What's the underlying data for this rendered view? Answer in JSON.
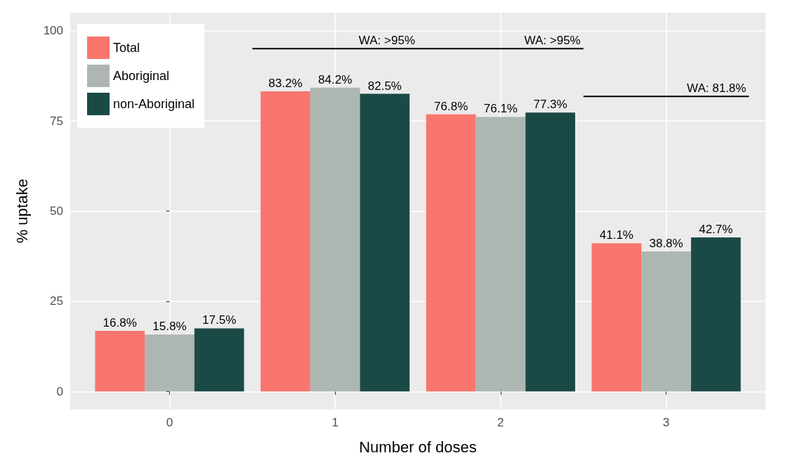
{
  "chart_data": {
    "type": "bar",
    "xlabel": "Number of doses",
    "ylabel": "% uptake",
    "x": [
      0,
      1,
      2,
      3
    ],
    "xlim": [
      -0.6,
      3.6
    ],
    "xticks": [
      0,
      1,
      2,
      3
    ],
    "series": [
      {
        "name": "Total",
        "color": "#f8766d",
        "values": [
          16.8,
          83.2,
          76.8,
          41.1
        ],
        "value_labels": [
          "16.8%",
          "83.2%",
          "76.8%",
          "41.1%"
        ]
      },
      {
        "name": "Aboriginal",
        "color": "#aeb6b1",
        "values": [
          15.8,
          84.2,
          76.1,
          38.8
        ],
        "value_labels": [
          "15.8%",
          "84.2%",
          "76.1%",
          "38.8%"
        ]
      },
      {
        "name": "non-Aboriginal",
        "color": "#1b4a46",
        "values": [
          17.5,
          82.5,
          77.3,
          42.7
        ],
        "value_labels": [
          "17.5%",
          "82.5%",
          "77.3%",
          "42.7%"
        ]
      },
      {
        "type": "line",
        "color": "#000000",
        "x": [
          0.5,
          2.5
        ],
        "values": [
          95,
          95
        ]
      },
      {
        "type": "line",
        "color": "#000000",
        "x": [
          2.5,
          3.5
        ],
        "values": [
          81.8,
          81.8
        ]
      }
    ],
    "ylim": [
      -5,
      105
    ],
    "yticks": [
      0,
      25,
      50,
      75,
      100
    ],
    "grid": true,
    "legend": "top left",
    "marker": "none",
    "annotations": [
      {
        "text": "WA: >95%",
        "x": 1.5,
        "y": 95
      },
      {
        "text": "WA: >95%",
        "x": 2.5,
        "y": 95
      },
      {
        "text": "WA: 81.8%",
        "x": 3.5,
        "y": 81.8
      }
    ]
  }
}
